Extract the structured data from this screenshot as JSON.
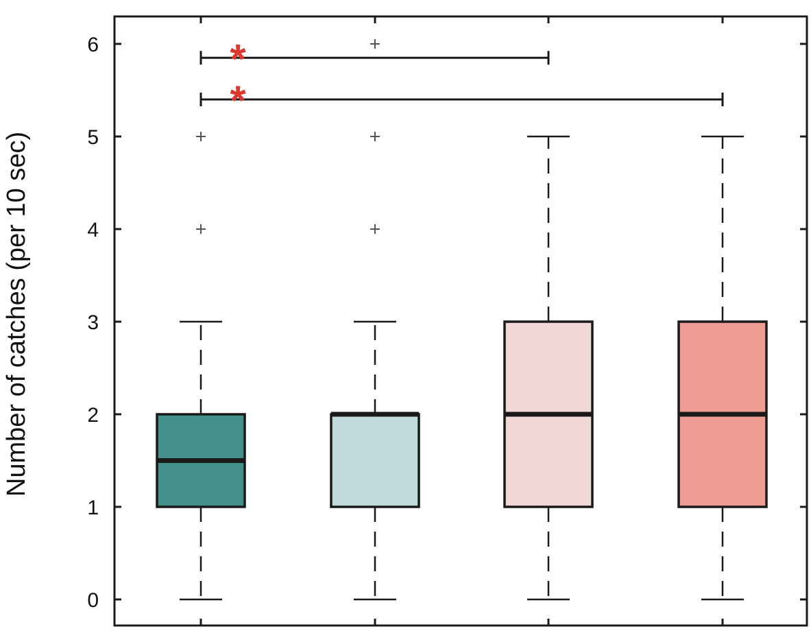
{
  "chart_data": {
    "type": "box",
    "title": "",
    "xlabel": "",
    "ylabel": "Number of catches (per 10 sec)",
    "ylim": [
      -0.3,
      6.3
    ],
    "yticks": [
      0,
      1,
      2,
      3,
      4,
      5,
      6
    ],
    "ytick_labels": [
      "0",
      "1",
      "2",
      "3",
      "4",
      "5",
      "6"
    ],
    "grid": false,
    "legend": "none",
    "groups": [
      {
        "whisker_low": 0,
        "q1": 1,
        "median": 1.5,
        "q3": 2,
        "whisker_high": 3,
        "outliers": [
          4,
          5
        ],
        "color": "#438f8a"
      },
      {
        "whisker_low": 0,
        "q1": 1,
        "median": 2,
        "q3": 2,
        "whisker_high": 3,
        "outliers": [
          4,
          5,
          6
        ],
        "color": "#c0dbdb"
      },
      {
        "whisker_low": 0,
        "q1": 1,
        "median": 2,
        "q3": 3,
        "whisker_high": 5,
        "outliers": [],
        "color": "#efd7d6"
      },
      {
        "whisker_low": 0,
        "q1": 1,
        "median": 2,
        "q3": 3,
        "whisker_high": 5,
        "outliers": [],
        "color": "#ef9d93"
      }
    ],
    "significance": [
      {
        "from_group": 1,
        "to_group": 3,
        "y": 5.85,
        "label": "*"
      },
      {
        "from_group": 1,
        "to_group": 4,
        "y": 5.4,
        "label": "*"
      }
    ],
    "significance_color": "#d9392f"
  }
}
